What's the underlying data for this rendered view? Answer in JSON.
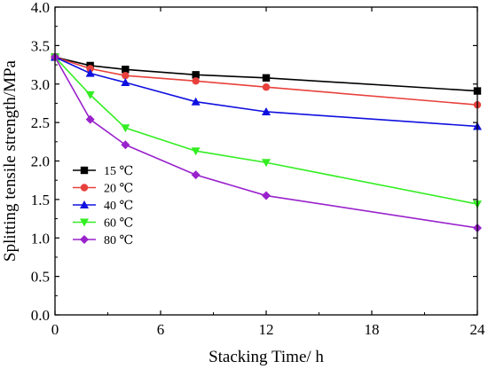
{
  "chart_data": {
    "type": "line",
    "title": "",
    "xlabel": "Stacking Time/ h",
    "ylabel": "Splitting tensile strength/MPa",
    "xlim": [
      0,
      24
    ],
    "ylim": [
      0.0,
      4.0
    ],
    "xticks": [
      0,
      6,
      12,
      18,
      24
    ],
    "yticks": [
      0.0,
      0.5,
      1.0,
      1.5,
      2.0,
      2.5,
      3.0,
      3.5,
      4.0
    ],
    "x": [
      0,
      2,
      4,
      8,
      12,
      24
    ],
    "grid": false,
    "legend_position": "left-center",
    "series": [
      {
        "name": "15 ℃",
        "color": "#000000",
        "marker": "square",
        "values": [
          3.35,
          3.24,
          3.19,
          3.12,
          3.08,
          2.91
        ]
      },
      {
        "name": "20 ℃",
        "color": "#e8413c",
        "marker": "circle",
        "values": [
          3.35,
          3.2,
          3.11,
          3.04,
          2.96,
          2.73
        ]
      },
      {
        "name": "40 ℃",
        "color": "#1010e0",
        "marker": "triangle-up",
        "values": [
          3.35,
          3.14,
          3.02,
          2.77,
          2.64,
          2.45
        ]
      },
      {
        "name": "60 ℃",
        "color": "#33ee22",
        "marker": "triangle-down",
        "values": [
          3.35,
          2.86,
          2.43,
          2.13,
          1.98,
          1.44
        ]
      },
      {
        "name": "80 ℃",
        "color": "#9922cc",
        "marker": "diamond",
        "values": [
          3.35,
          2.54,
          2.21,
          1.82,
          1.55,
          1.13
        ]
      }
    ]
  }
}
